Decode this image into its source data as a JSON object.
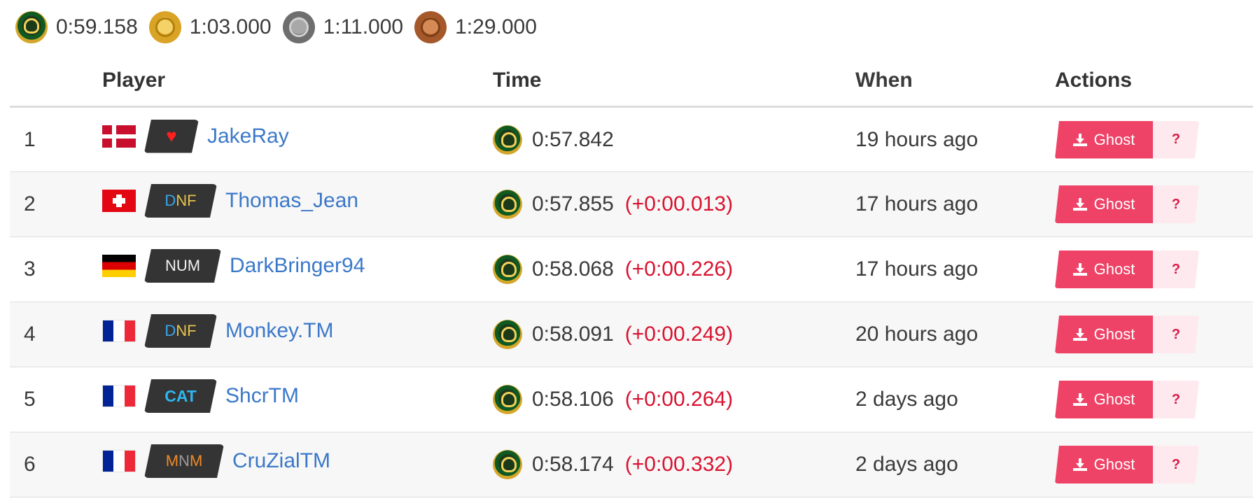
{
  "medals": [
    {
      "type": "author",
      "time": "0:59.158"
    },
    {
      "type": "gold",
      "time": "1:03.000"
    },
    {
      "type": "silver",
      "time": "1:11.000"
    },
    {
      "type": "bronze",
      "time": "1:29.000"
    }
  ],
  "columns": {
    "rank": "",
    "player": "Player",
    "time": "Time",
    "when": "When",
    "actions": "Actions"
  },
  "rows": [
    {
      "rank": "1",
      "flag": "denmark-flag",
      "tag": "♥",
      "name": "JakeRay",
      "time": "0:57.842",
      "diff": "",
      "when": "19 hours ago"
    },
    {
      "rank": "2",
      "flag": "switzerland-flag",
      "tag": "DNF",
      "name": "Thomas_Jean",
      "time": "0:57.855",
      "diff": "(+0:00.013)",
      "when": "17 hours ago"
    },
    {
      "rank": "3",
      "flag": "germany-flag",
      "tag": "NUM",
      "name": "DarkBringer94",
      "time": "0:58.068",
      "diff": "(+0:00.226)",
      "when": "17 hours ago"
    },
    {
      "rank": "4",
      "flag": "france-flag",
      "tag": "DNF",
      "name": "Monkey.TM",
      "time": "0:58.091",
      "diff": "(+0:00.249)",
      "when": "20 hours ago"
    },
    {
      "rank": "5",
      "flag": "france-flag",
      "tag": "CAT",
      "name": "ShcrTM",
      "time": "0:58.106",
      "diff": "(+0:00.264)",
      "when": "2 days ago"
    },
    {
      "rank": "6",
      "flag": "france-flag",
      "tag": "MNM",
      "name": "CruZialTM",
      "time": "0:58.174",
      "diff": "(+0:00.332)",
      "when": "2 days ago"
    }
  ],
  "actions": {
    "ghost_label": "Ghost",
    "help_label": "?",
    "ghost_icon": "download-icon"
  },
  "colors": {
    "ghost_button": "#ee4266",
    "help_button": "#fde9ee",
    "player_link": "#3b78c9",
    "diff": "#d9122f"
  }
}
